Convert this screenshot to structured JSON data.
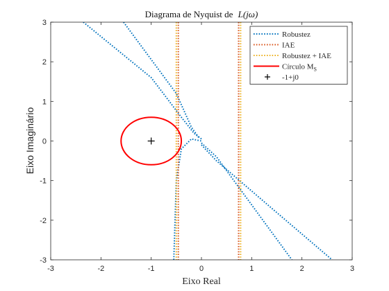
{
  "chart_data": {
    "type": "line",
    "title": "Diagrama de Nyquist de L(jω)",
    "title_func": "L(jω)",
    "title_prefix": "Diagrama de Nyquist de",
    "xlabel": "Eixo Real",
    "ylabel": "Eixo Imaginário",
    "xlim": [
      -3,
      3
    ],
    "ylim": [
      -3,
      3
    ],
    "xticks": [
      -3,
      -2,
      -1,
      0,
      1,
      2,
      3
    ],
    "yticks": [
      -3,
      -2,
      -1,
      0,
      1,
      2,
      3
    ],
    "grid": false,
    "legend_position": "top-right",
    "series": [
      {
        "name": "Robustez",
        "color": "#0072bd",
        "style": "dotted",
        "segments": [
          [
            [
              -2.35,
              3.0
            ],
            [
              -1.0,
              1.6
            ],
            [
              -0.4,
              0.6
            ],
            [
              -0.15,
              0.2
            ],
            [
              0.0,
              0.05
            ]
          ],
          [
            [
              -1.55,
              3.0
            ],
            [
              -0.5,
              1.2
            ],
            [
              -0.2,
              0.35
            ],
            [
              -0.05,
              0.08
            ]
          ],
          [
            [
              -0.55,
              -3.0
            ],
            [
              -0.5,
              -1.0
            ],
            [
              -0.4,
              -0.2
            ],
            [
              -0.2,
              0.05
            ],
            [
              0.0,
              0.0
            ]
          ],
          [
            [
              0.0,
              -0.1
            ],
            [
              0.3,
              -0.5
            ],
            [
              1.4,
              -1.7
            ],
            [
              2.6,
              -3.0
            ]
          ],
          [
            [
              0.0,
              -0.05
            ],
            [
              0.3,
              -0.4
            ],
            [
              1.8,
              -3.0
            ]
          ]
        ]
      },
      {
        "name": "IAE",
        "color": "#d95319",
        "style": "dotted",
        "segments": [
          [
            [
              -0.46,
              3.0
            ],
            [
              -0.46,
              -3.0
            ]
          ],
          [
            [
              0.74,
              3.0
            ],
            [
              0.74,
              -3.0
            ]
          ]
        ]
      },
      {
        "name": "Robustez + IAE",
        "color": "#edb120",
        "style": "dotted",
        "segments": [
          [
            [
              -0.5,
              3.0
            ],
            [
              -0.5,
              -3.0
            ]
          ],
          [
            [
              0.78,
              3.0
            ],
            [
              0.78,
              -3.0
            ]
          ]
        ]
      },
      {
        "name": "Círculo M_S",
        "label_main": "Círculo M",
        "label_sub": "S",
        "color": "#ff0000",
        "style": "solid",
        "center": [
          -1,
          0
        ],
        "radius": 0.6
      },
      {
        "name": "-1+j0",
        "marker": "+",
        "color": "#000000",
        "point": [
          -1,
          0
        ]
      }
    ]
  }
}
